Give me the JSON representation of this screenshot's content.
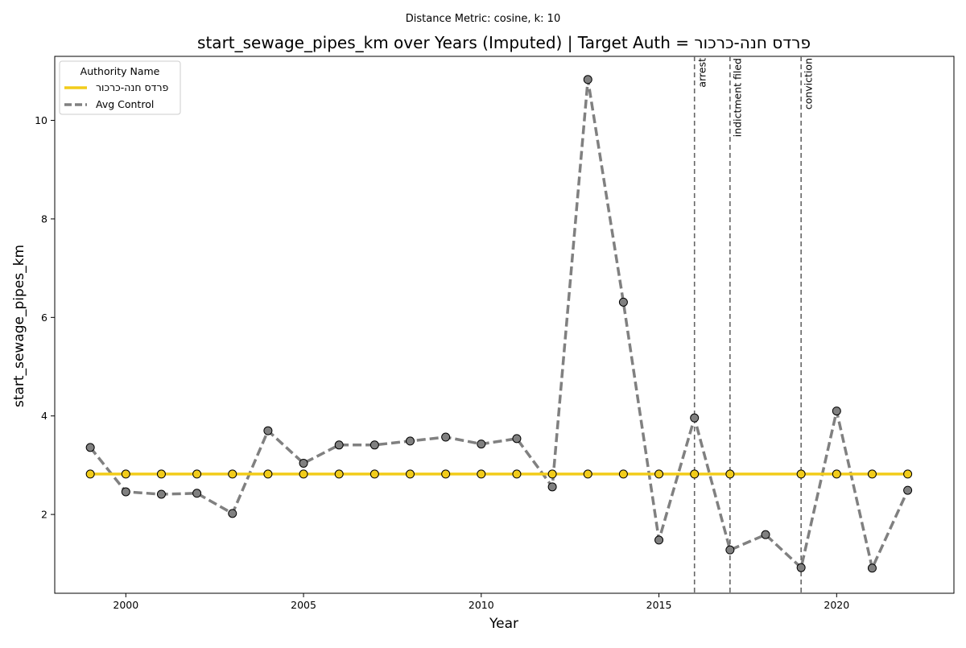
{
  "chart_data": {
    "type": "line",
    "suptitle": "Distance Metric: cosine, k: 10",
    "title": "start_sewage_pipes_km over Years (Imputed) | Target Auth = פרדס חנה-כרכור",
    "xlabel": "Year",
    "ylabel": "start_sewage_pipes_km",
    "xlim": [
      1998,
      2023.3
    ],
    "ylim": [
      0.4,
      11.3
    ],
    "xticks": [
      2000,
      2005,
      2010,
      2015,
      2020
    ],
    "yticks": [
      2,
      4,
      6,
      8,
      10
    ],
    "grid": false,
    "legend": {
      "title": "Authority Name",
      "placement": "top-left"
    },
    "x": [
      1999,
      2000,
      2001,
      2002,
      2003,
      2004,
      2005,
      2006,
      2007,
      2008,
      2009,
      2010,
      2011,
      2012,
      2013,
      2014,
      2015,
      2016,
      2017,
      2018,
      2019,
      2020,
      2021,
      2022
    ],
    "series": [
      {
        "name": "פרדס חנה-כרכור",
        "color": "#f2cc1a",
        "style": "solid",
        "marker_fill": "#f2cc1a",
        "values": [
          2.82,
          2.82,
          2.82,
          2.82,
          2.82,
          2.82,
          2.82,
          2.82,
          2.82,
          2.82,
          2.82,
          2.82,
          2.82,
          2.82,
          2.82,
          2.82,
          2.82,
          2.82,
          2.82,
          null,
          2.82,
          2.82,
          2.82,
          2.82
        ]
      },
      {
        "name": "Avg Control",
        "color": "#808080",
        "style": "dashed",
        "marker_fill": "#808080",
        "values": [
          3.36,
          2.46,
          2.41,
          2.43,
          2.02,
          3.7,
          3.04,
          3.41,
          3.41,
          3.49,
          3.57,
          3.43,
          3.54,
          2.56,
          10.83,
          6.31,
          1.48,
          3.96,
          1.28,
          1.59,
          0.92,
          4.1,
          0.91,
          2.49
        ]
      }
    ],
    "events": [
      {
        "x": 2016,
        "label": "arrest"
      },
      {
        "x": 2017,
        "label": "indictment filed"
      },
      {
        "x": 2019,
        "label": "conviction"
      }
    ]
  }
}
